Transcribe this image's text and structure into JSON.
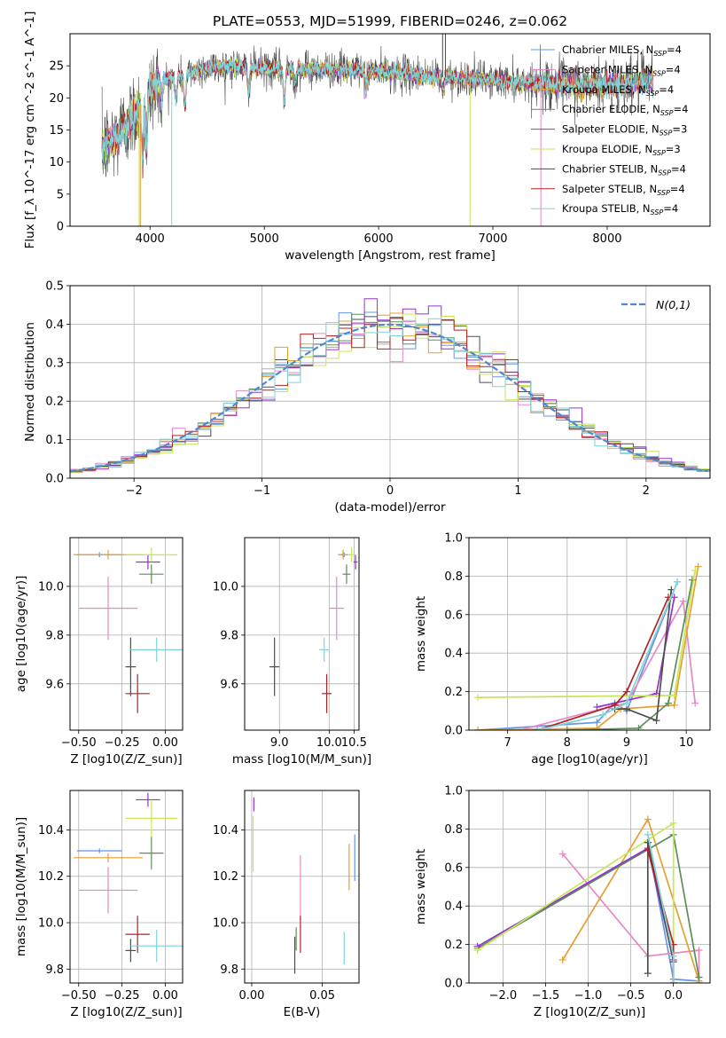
{
  "figure_title": "PLATE=0553, MJD=51999, FIBERID=0246, z=0.062",
  "colors": {
    "series": [
      "#6495ED",
      "#E78AC3",
      "#E69F30",
      "#5A8F5A",
      "#9932CC",
      "#C8E65A",
      "#4D4D4D",
      "#B22222",
      "#7FD4D8"
    ],
    "normal": "#4F86D6"
  },
  "legend_labels": [
    "Chabrier MILES, N_SSP=4",
    "Salpeter MILES, N_SSP=4",
    "Kroupa MILES, N_SSP=4",
    "Chabrier ELODIE, N_SSP=4",
    "Salpeter ELODIE, N_SSP=3",
    "Kroupa ELODIE, N_SSP=3",
    "Chabrier STELIB, N_SSP=4",
    "Salpeter STELIB, N_SSP=4",
    "Kroupa STELIB, N_SSP=4"
  ],
  "chart_data": [
    {
      "id": "spectrum",
      "type": "line",
      "title": "PLATE=0553, MJD=51999, FIBERID=0246, z=0.062",
      "xlabel": "wavelength [Angstrom, rest frame]",
      "ylabel": "Flux [f_λ 10^-17 erg cm^-2 s^-1 A^-1]",
      "xlim": [
        3300,
        8900
      ],
      "ylim": [
        0,
        30
      ],
      "xticks": [
        4000,
        5000,
        6000,
        7000,
        8000
      ],
      "yticks": [
        0,
        5,
        10,
        15,
        20,
        25
      ],
      "continuum_knots": {
        "x": [
          3580,
          3700,
          3850,
          3950,
          4050,
          4150,
          4300,
          4450,
          4700,
          5000,
          5300,
          5600,
          5900,
          6200,
          6500,
          6800,
          7100,
          7400,
          7700,
          8000,
          8300,
          8400
        ],
        "y": [
          12,
          14,
          17,
          20,
          22,
          23,
          23.5,
          24.5,
          25,
          24.5,
          24.5,
          24.5,
          24.2,
          23.8,
          23.3,
          23,
          22.6,
          22.3,
          22,
          22,
          22.5,
          22.5
        ]
      },
      "absorption_features": [
        {
          "x": 3934,
          "depth": 0.45
        },
        {
          "x": 3969,
          "depth": 0.4
        },
        {
          "x": 4102,
          "depth": 0.15
        },
        {
          "x": 4226,
          "depth": 0.15
        },
        {
          "x": 4305,
          "depth": 0.2
        },
        {
          "x": 4861,
          "depth": 0.15
        },
        {
          "x": 5175,
          "depth": 0.22
        },
        {
          "x": 5270,
          "depth": 0.1
        },
        {
          "x": 5893,
          "depth": 0.12
        },
        {
          "x": 6563,
          "depth": 0.08
        }
      ]
    },
    {
      "id": "residuals",
      "type": "histogram",
      "xlabel": "(data-model)/error",
      "ylabel": "Normed distribution",
      "xlim": [
        -2.5,
        2.5
      ],
      "ylim": [
        0,
        0.5
      ],
      "xticks": [
        -2,
        -1,
        0,
        1,
        2
      ],
      "yticks": [
        0.0,
        0.1,
        0.2,
        0.3,
        0.4,
        0.5
      ],
      "grid": true,
      "legend": "N(0,1)",
      "legend_position": "top-right",
      "bin_width": 0.1,
      "bin_start": -2.5
    },
    {
      "id": "age_vs_Z",
      "type": "errorbar",
      "xlabel": "Z [log10(Z/Z_sun)]",
      "ylabel": "age [log10(age/yr)]",
      "xlim": [
        -0.55,
        0.1
      ],
      "ylim": [
        9.41,
        10.2
      ],
      "xticks": [
        -0.5,
        -0.25,
        0.0
      ],
      "yticks": [
        9.6,
        9.8,
        10.0
      ],
      "grid": true,
      "points": [
        {
          "x": -0.38,
          "xerr": 0.13,
          "y": 10.13,
          "yerr": 0.01
        },
        {
          "x": -0.33,
          "xerr": 0.17,
          "y": 9.91,
          "yerr": 0.13
        },
        {
          "x": -0.33,
          "xerr": 0.2,
          "y": 10.13,
          "yerr": 0.02
        },
        {
          "x": -0.08,
          "xerr": 0.07,
          "y": 10.05,
          "yerr": 0.04
        },
        {
          "x": -0.1,
          "xerr": 0.07,
          "y": 10.1,
          "yerr": 0.03
        },
        {
          "x": -0.08,
          "xerr": 0.15,
          "y": 10.13,
          "yerr": 0.03
        },
        {
          "x": -0.2,
          "xerr": 0.03,
          "y": 9.67,
          "yerr": 0.12
        },
        {
          "x": -0.16,
          "xerr": 0.07,
          "y": 9.56,
          "yerr": 0.08
        },
        {
          "x": -0.05,
          "xerr": 0.15,
          "y": 9.74,
          "yerr": 0.05
        }
      ]
    },
    {
      "id": "age_vs_mass",
      "type": "errorbar",
      "xlabel": "mass [log10(M/M_sun)]",
      "xlim": [
        8.3,
        10.6
      ],
      "ylim": [
        9.41,
        10.2
      ],
      "xticks": [
        9.0,
        10.0,
        10.5
      ],
      "yticks": [
        9.6,
        9.8,
        10.0
      ],
      "grid": true,
      "points": [
        {
          "x": 10.3,
          "xerr": 0.12,
          "y": 10.13,
          "yerr": 0.01
        },
        {
          "x": 10.15,
          "xerr": 0.15,
          "y": 9.91,
          "yerr": 0.13
        },
        {
          "x": 10.28,
          "xerr": 0.08,
          "y": 10.13,
          "yerr": 0.02
        },
        {
          "x": 10.35,
          "xerr": 0.08,
          "y": 10.05,
          "yerr": 0.04
        },
        {
          "x": 10.53,
          "xerr": 0.04,
          "y": 10.1,
          "yerr": 0.03
        },
        {
          "x": 10.45,
          "xerr": 0.08,
          "y": 10.13,
          "yerr": 0.03
        },
        {
          "x": 8.9,
          "xerr": 0.1,
          "y": 9.67,
          "yerr": 0.12
        },
        {
          "x": 9.95,
          "xerr": 0.1,
          "y": 9.56,
          "yerr": 0.08
        },
        {
          "x": 9.9,
          "xerr": 0.1,
          "y": 9.74,
          "yerr": 0.05
        }
      ]
    },
    {
      "id": "massweight_vs_age",
      "type": "line",
      "xlabel": "age [log10(age/yr)]",
      "ylabel": "mass weight",
      "xlim": [
        6.35,
        10.4
      ],
      "ylim": [
        0,
        1.0
      ],
      "xticks": [
        7,
        8,
        9,
        10
      ],
      "yticks": [
        0.0,
        0.2,
        0.4,
        0.6,
        0.8,
        1.0
      ],
      "grid": true,
      "series": [
        {
          "x": [
            6.5,
            8.5,
            8.8,
            9.0,
            9.85
          ],
          "y": [
            0.0,
            0.04,
            0.14,
            0.1,
            0.77
          ]
        },
        {
          "x": [
            7.2,
            8.7,
            9.0,
            9.95,
            10.15
          ],
          "y": [
            0.0,
            0.12,
            0.14,
            0.67,
            0.14
          ]
        },
        {
          "x": [
            6.5,
            8.5,
            8.9,
            9.8,
            10.2
          ],
          "y": [
            0.0,
            0.01,
            0.11,
            0.13,
            0.85
          ]
        },
        {
          "x": [
            8.0,
            9.2,
            9.7,
            10.1
          ],
          "y": [
            0.0,
            0.01,
            0.14,
            0.78
          ]
        },
        {
          "x": [
            8.5,
            9.5,
            9.8
          ],
          "y": [
            0.12,
            0.19,
            0.69
          ]
        },
        {
          "x": [
            6.5,
            9.8,
            10.15
          ],
          "y": [
            0.17,
            0.18,
            0.83
          ]
        },
        {
          "x": [
            8.8,
            9.0,
            9.5,
            9.75
          ],
          "y": [
            0.11,
            0.11,
            0.05,
            0.73
          ]
        },
        {
          "x": [
            7.5,
            8.8,
            9.0,
            9.7
          ],
          "y": [
            0.0,
            0.13,
            0.2,
            0.69
          ]
        },
        {
          "x": [
            7.5,
            8.6,
            9.0,
            9.85
          ],
          "y": [
            0.0,
            0.08,
            0.14,
            0.77
          ]
        }
      ]
    },
    {
      "id": "mass_vs_Z",
      "type": "errorbar",
      "xlabel": "Z [log10(Z/Z_sun)]",
      "ylabel": "mass [log10(M/M_sun)]",
      "xlim": [
        -0.55,
        0.1
      ],
      "ylim": [
        9.74,
        10.57
      ],
      "xticks": [
        -0.5,
        -0.25,
        0.0
      ],
      "yticks": [
        9.8,
        10.0,
        10.2,
        10.4
      ],
      "grid": true,
      "points": [
        {
          "x": -0.38,
          "xerr": 0.13,
          "y": 10.31,
          "yerr": 0.01
        },
        {
          "x": -0.33,
          "xerr": 0.17,
          "y": 10.14,
          "yerr": 0.1
        },
        {
          "x": -0.33,
          "xerr": 0.2,
          "y": 10.28,
          "yerr": 0.02
        },
        {
          "x": -0.08,
          "xerr": 0.07,
          "y": 10.3,
          "yerr": 0.07
        },
        {
          "x": -0.1,
          "xerr": 0.07,
          "y": 10.53,
          "yerr": 0.03
        },
        {
          "x": -0.08,
          "xerr": 0.15,
          "y": 10.45,
          "yerr": 0.08
        },
        {
          "x": -0.2,
          "xerr": 0.03,
          "y": 9.88,
          "yerr": 0.05
        },
        {
          "x": -0.16,
          "xerr": 0.07,
          "y": 9.95,
          "yerr": 0.08
        },
        {
          "x": -0.05,
          "xerr": 0.15,
          "y": 9.9,
          "yerr": 0.07
        }
      ]
    },
    {
      "id": "mass_vs_ebv",
      "type": "errorbar",
      "xlabel": "E(B-V)",
      "xlim": [
        -0.005,
        0.076
      ],
      "ylim": [
        9.74,
        10.57
      ],
      "xticks": [
        0.0,
        0.05
      ],
      "yticks": [
        9.8,
        10.0,
        10.2,
        10.4
      ],
      "grid": true,
      "points": [
        {
          "x": 0.073,
          "yerr": 0.1,
          "y": 10.28
        },
        {
          "x": 0.0345,
          "yerr": 0.14,
          "y": 10.15
        },
        {
          "x": 0.069,
          "yerr": 0.1,
          "y": 10.24
        },
        {
          "x": 0.0315,
          "yerr": 0.05,
          "y": 9.93
        },
        {
          "x": 0.0015,
          "yerr": 0.03,
          "y": 10.51
        },
        {
          "x": 0.001,
          "yerr": 0.12,
          "y": 10.34
        },
        {
          "x": 0.0305,
          "yerr": 0.08,
          "y": 9.86
        },
        {
          "x": 0.0345,
          "yerr": 0.08,
          "y": 9.95
        },
        {
          "x": 0.0655,
          "yerr": 0.07,
          "y": 9.89
        }
      ]
    },
    {
      "id": "massweight_vs_Z",
      "type": "line",
      "xlabel": "Z [log10(Z/Z_sun)]",
      "ylabel": "mass weight",
      "xlim": [
        -2.4,
        0.43
      ],
      "ylim": [
        0,
        1.0
      ],
      "xticks": [
        -2.0,
        -1.5,
        -1.0,
        -0.5,
        0.0
      ],
      "yticks": [
        0.0,
        0.2,
        0.4,
        0.6,
        0.8,
        1.0
      ],
      "grid": true,
      "series": [
        {
          "x": [
            -0.3,
            0.0,
            0.3,
            0.3
          ],
          "y": [
            0.73,
            0.02,
            0.01,
            0.03
          ]
        },
        {
          "x": [
            -1.3,
            -0.3,
            0.3,
            0.3
          ],
          "y": [
            0.67,
            0.14,
            0.17,
            0.0
          ]
        },
        {
          "x": [
            -1.3,
            -0.3,
            0.3,
            0.3
          ],
          "y": [
            0.12,
            0.85,
            0.01,
            0.0
          ]
        },
        {
          "x": [
            -2.3,
            0.0,
            0.3
          ],
          "y": [
            0.18,
            0.77,
            0.03
          ]
        },
        {
          "x": [
            -2.3,
            -0.3,
            0.0
          ],
          "y": [
            0.19,
            0.7,
            0.12
          ]
        },
        {
          "x": [
            -2.3,
            0.0,
            0.0
          ],
          "y": [
            0.17,
            0.83,
            0.0
          ]
        },
        {
          "x": [
            -0.3,
            -0.3,
            0.0,
            0.0
          ],
          "y": [
            0.05,
            0.73,
            0.11,
            0.0
          ]
        },
        {
          "x": [
            -0.3,
            0.0,
            0.0
          ],
          "y": [
            0.69,
            0.2,
            0.0
          ]
        },
        {
          "x": [
            -0.3,
            0.0,
            0.0
          ],
          "y": [
            0.77,
            0.14,
            0.0
          ]
        }
      ]
    }
  ]
}
